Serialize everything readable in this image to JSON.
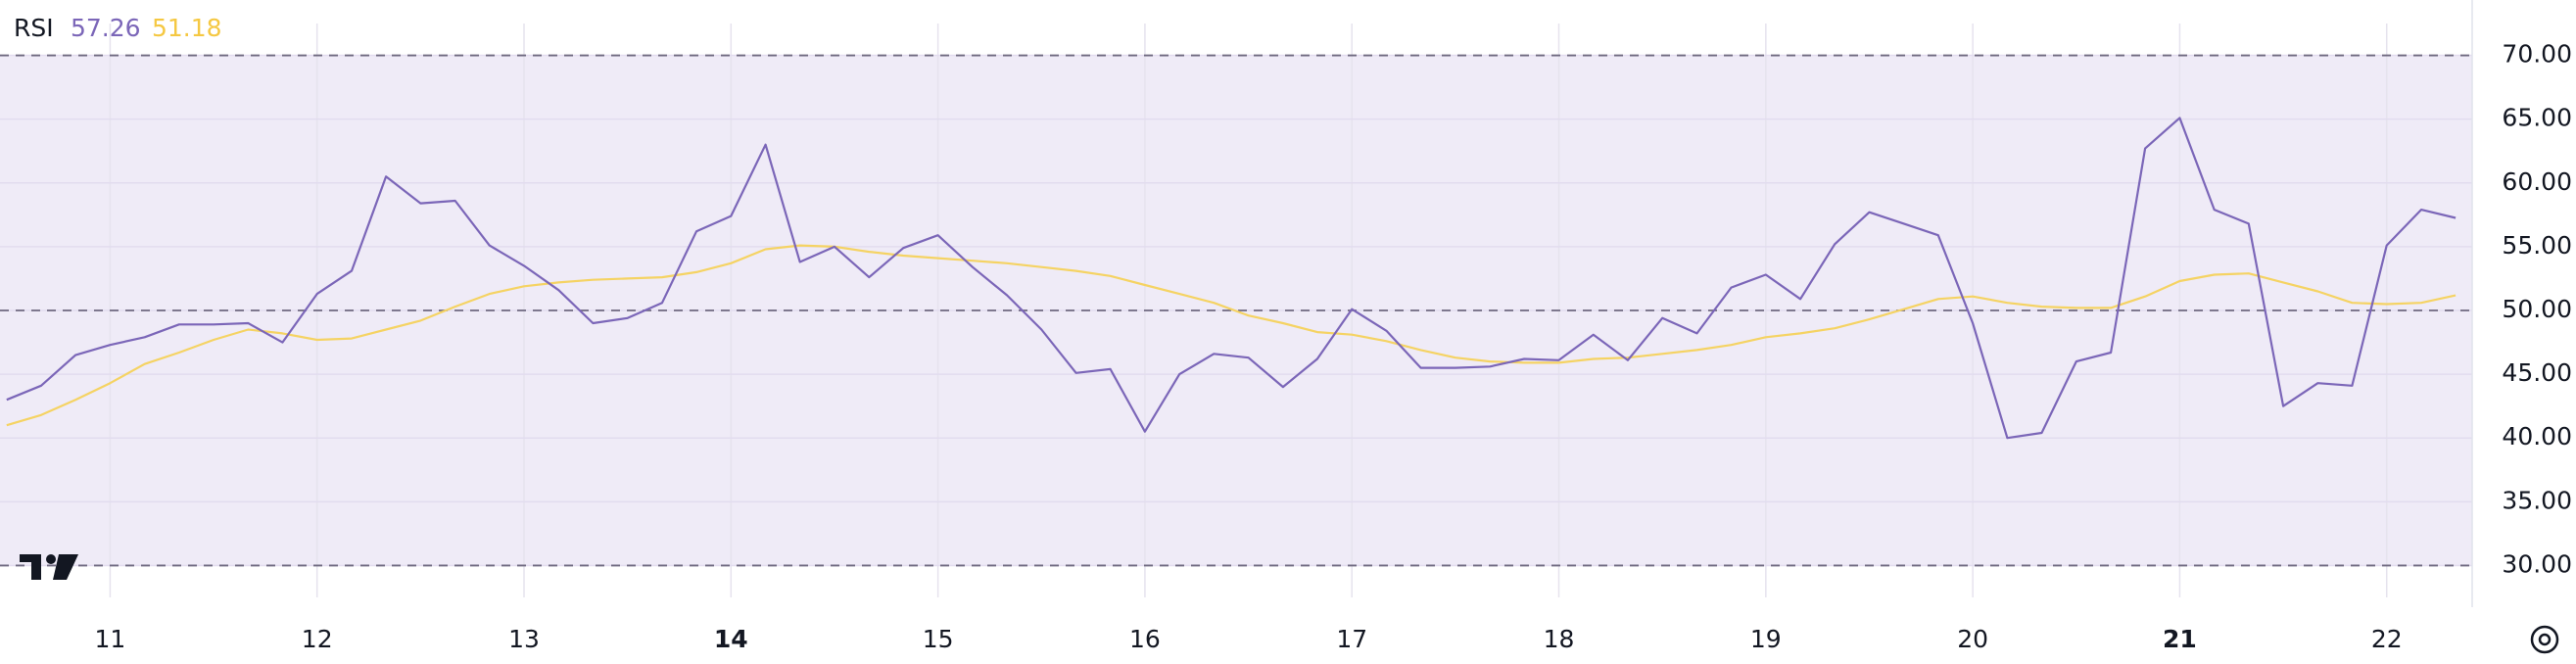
{
  "chart_data": {
    "type": "line",
    "title": "RSI",
    "x": [
      10.5,
      10.667,
      10.833,
      11,
      11.167,
      11.333,
      11.5,
      11.667,
      11.833,
      12,
      12.167,
      12.333,
      12.5,
      12.667,
      12.833,
      13,
      13.167,
      13.333,
      13.5,
      13.667,
      13.833,
      14,
      14.167,
      14.333,
      14.5,
      14.667,
      14.833,
      15,
      15.167,
      15.333,
      15.5,
      15.667,
      15.833,
      16,
      16.167,
      16.333,
      16.5,
      16.667,
      16.833,
      17,
      17.167,
      17.333,
      17.5,
      17.667,
      17.833,
      18,
      18.167,
      18.333,
      18.5,
      18.667,
      18.833,
      19,
      19.167,
      19.333,
      19.5,
      19.667,
      19.833,
      20,
      20.167,
      20.333,
      20.5,
      20.667,
      20.833,
      21,
      21.167,
      21.333,
      21.5,
      21.667,
      21.833,
      22,
      22.167,
      22.333
    ],
    "series": [
      {
        "color": "#7b66b8",
        "values": [
          43.0,
          44.1,
          46.5,
          47.3,
          47.9,
          48.9,
          48.9,
          49.0,
          47.5,
          51.3,
          53.1,
          60.5,
          58.4,
          58.6,
          55.1,
          53.5,
          51.6,
          49.0,
          49.4,
          50.6,
          56.2,
          57.4,
          63.0,
          53.8,
          55.0,
          52.6,
          54.9,
          55.9,
          53.4,
          51.2,
          48.5,
          45.1,
          45.4,
          40.5,
          45.0,
          46.6,
          46.3,
          44.0,
          46.2,
          50.1,
          48.4,
          45.5,
          45.5,
          45.6,
          46.2,
          46.1,
          48.1,
          46.1,
          49.4,
          48.2,
          51.8,
          52.8,
          50.9,
          55.2,
          57.7,
          56.8,
          55.9,
          49.0,
          40.0,
          40.4,
          46.0,
          46.7,
          62.7,
          65.1,
          57.9,
          56.8,
          42.5,
          44.3,
          44.1,
          55.1,
          57.9,
          57.26
        ]
      },
      {
        "color": "#f5d363",
        "values": [
          41.0,
          41.8,
          43.0,
          44.3,
          45.8,
          46.7,
          47.7,
          48.5,
          48.2,
          47.7,
          47.8,
          48.5,
          49.2,
          50.3,
          51.3,
          51.9,
          52.2,
          52.4,
          52.5,
          52.6,
          53.0,
          53.7,
          54.8,
          55.1,
          55.0,
          54.6,
          54.3,
          54.1,
          53.9,
          53.7,
          53.4,
          53.1,
          52.7,
          52.0,
          51.3,
          50.6,
          49.6,
          49.0,
          48.3,
          48.1,
          47.6,
          46.9,
          46.3,
          46.0,
          45.9,
          45.9,
          46.2,
          46.3,
          46.6,
          46.9,
          47.3,
          47.9,
          48.2,
          48.6,
          49.3,
          50.1,
          50.9,
          51.1,
          50.6,
          50.3,
          50.2,
          50.2,
          51.1,
          52.3,
          52.8,
          52.9,
          52.2,
          51.5,
          50.6,
          50.5,
          50.6,
          51.18
        ]
      }
    ],
    "xlim": [
      10.468,
      22.413
    ],
    "xticks": [
      11,
      12,
      13,
      14,
      15,
      16,
      17,
      18,
      19,
      20,
      21,
      22
    ],
    "bold_xticks": [
      14,
      21
    ],
    "ylim": [
      27.5,
      72.5
    ],
    "yticks": [
      {
        "value": 30,
        "label": "30.00"
      },
      {
        "value": 35,
        "label": "35.00"
      },
      {
        "value": 40,
        "label": "40.00"
      },
      {
        "value": 45,
        "label": "45.00"
      },
      {
        "value": 50,
        "label": "50.00"
      },
      {
        "value": 55,
        "label": "55.00"
      },
      {
        "value": 60,
        "label": "60.00"
      },
      {
        "value": 65,
        "label": "65.00"
      },
      {
        "value": 70,
        "label": "70.00"
      }
    ],
    "band_lines": [
      30,
      50,
      70
    ],
    "band_fill": "#efebf7",
    "grid": true
  }
}
